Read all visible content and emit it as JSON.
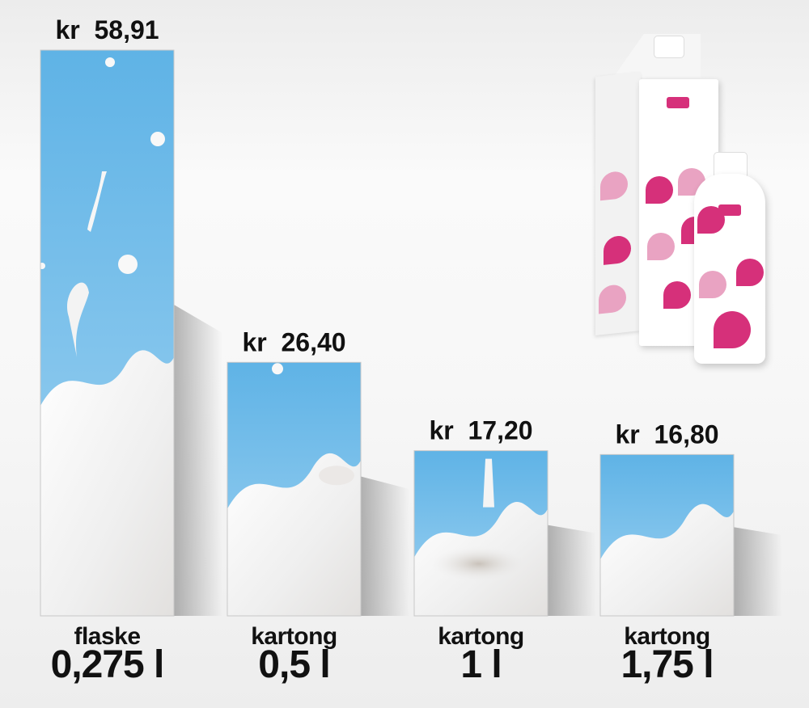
{
  "chart_data": {
    "type": "bar",
    "categories": [
      "flaske 0,275 l",
      "kartong 0,5 l",
      "kartong 1 l",
      "kartong 1,75 l"
    ],
    "values": [
      58.91,
      26.4,
      17.2,
      16.8
    ],
    "bars": [
      {
        "price_label": "kr  58,91",
        "package": "flaske",
        "volume": "0,275 l",
        "value": 58.91
      },
      {
        "price_label": "kr  26,40",
        "package": "kartong",
        "volume": "0,5 l",
        "value": 26.4
      },
      {
        "price_label": "kr  17,20",
        "package": "kartong",
        "volume": "1 l",
        "value": 17.2
      },
      {
        "price_label": "kr  16,80",
        "package": "kartong",
        "volume": "1,75 l",
        "value": 16.8
      }
    ],
    "ylim": [
      0,
      75
    ],
    "grid": false,
    "legend": "none"
  },
  "colors": {
    "sky": "#66b6e6",
    "milk": "#f4f4f4",
    "milk_shadow": "#d9d4cf",
    "brand_pink": "#d6307a"
  },
  "decor": {
    "product_image": "milk-carton-and-bottle-illustration"
  }
}
